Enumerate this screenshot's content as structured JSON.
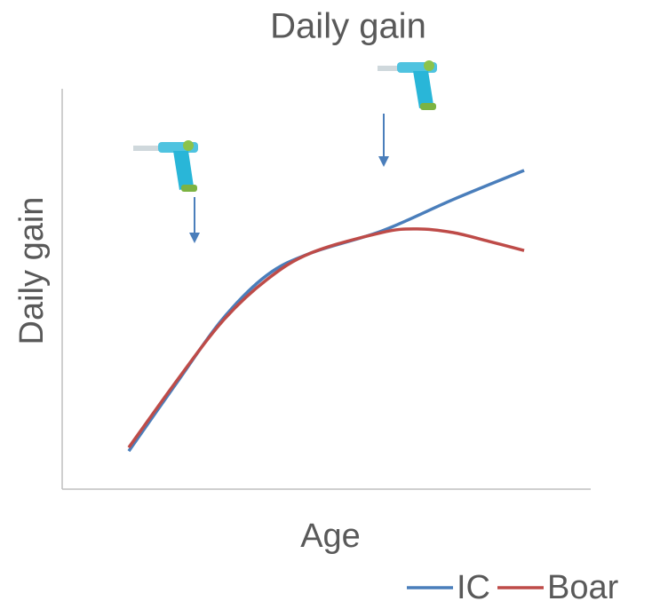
{
  "chart_data": {
    "type": "line",
    "title": "Daily gain",
    "x_label": "Age",
    "y_label": "Daily gain",
    "xlim": [
      0,
      100
    ],
    "ylim": [
      0,
      100
    ],
    "grid": false,
    "legend": "bottom-right",
    "series": [
      {
        "name": "IC",
        "color": "#4a7ebb",
        "x": [
          12.6,
          21.8,
          30.3,
          38.7,
          47.1,
          60.5,
          73.9,
          87.4
        ],
        "values": [
          9.5,
          26.8,
          42.4,
          53.4,
          59.0,
          64.5,
          72.3,
          79.6
        ]
      },
      {
        "name": "Boar",
        "color": "#be4b48",
        "x": [
          12.6,
          21.8,
          30.3,
          38.7,
          47.1,
          60.5,
          67.2,
          73.9,
          80.7,
          87.4
        ],
        "values": [
          10.4,
          27.3,
          41.9,
          52.3,
          59.0,
          64.1,
          65.0,
          64.1,
          61.9,
          59.6
        ]
      }
    ]
  }
}
